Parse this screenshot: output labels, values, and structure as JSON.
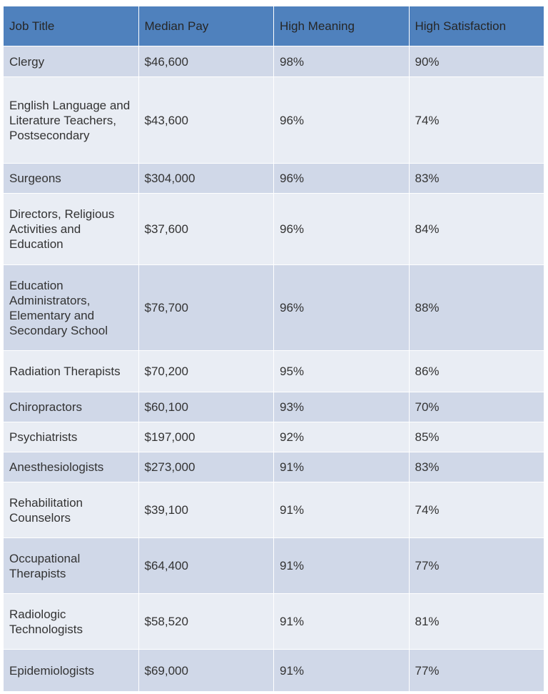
{
  "headers": [
    "Job Title",
    "Median Pay",
    "High Meaning",
    "High Satisfaction"
  ],
  "colors": {
    "header": "#4f81bd",
    "row_dark": "#d0d8e8",
    "row_light": "#e9edf4"
  },
  "rows": [
    [
      "Clergy",
      "$46,600",
      "98%",
      "90%"
    ],
    [
      "English Language and Literature Teachers, Postsecondary",
      "$43,600",
      "96%",
      "74%"
    ],
    [
      "Surgeons",
      "$304,000",
      "96%",
      "83%"
    ],
    [
      "Directors, Religious Activities and Education",
      "$37,600",
      "96%",
      "84%"
    ],
    [
      "Education Administrators, Elementary and Secondary School",
      "$76,700",
      "96%",
      "88%"
    ],
    [
      "Radiation Therapists",
      "$70,200",
      "95%",
      "86%"
    ],
    [
      "Chiropractors",
      "$60,100",
      "93%",
      "70%"
    ],
    [
      "Psychiatrists",
      "$197,000",
      "92%",
      "85%"
    ],
    [
      "Anesthesiologists",
      "$273,000",
      "91%",
      "83%"
    ],
    [
      "Rehabilitation Counselors",
      "$39,100",
      "91%",
      "74%"
    ],
    [
      "Occupational Therapists",
      "$64,400",
      "91%",
      "77%"
    ],
    [
      "Radiologic Technologists",
      "$58,520",
      "91%",
      "81%"
    ],
    [
      "Epidemiologists",
      "$69,000",
      "91%",
      "77%"
    ]
  ]
}
